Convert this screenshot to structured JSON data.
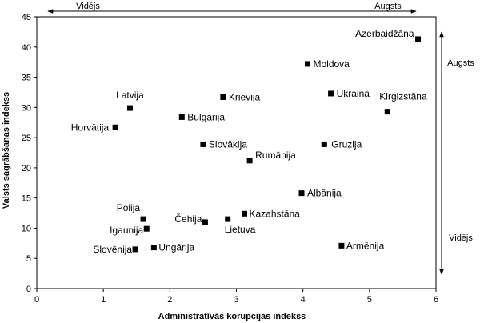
{
  "chart_data": {
    "type": "scatter",
    "title": "",
    "xlabel": "Administratīvās korupcijas indekss",
    "ylabel": "Valsts sagrābšanas indekss",
    "xlim": [
      0,
      6
    ],
    "ylim": [
      0,
      45
    ],
    "xticks": [
      0,
      1,
      2,
      3,
      4,
      5,
      6
    ],
    "yticks": [
      0,
      5,
      10,
      15,
      20,
      25,
      30,
      35,
      40,
      45
    ],
    "grid": false,
    "regions": {
      "top_left": "Vidējs",
      "top_right": "Augsts",
      "right_top": "Augsts",
      "right_bottom": "Vidējs"
    },
    "points": [
      {
        "label": "Azerbaidžāna",
        "x": 5.73,
        "y": 41.3
      },
      {
        "label": "Moldova",
        "x": 4.07,
        "y": 37.2
      },
      {
        "label": "Ukraina",
        "x": 4.42,
        "y": 32.3
      },
      {
        "label": "Kirgizstāna",
        "x": 5.27,
        "y": 29.3
      },
      {
        "label": "Latvija",
        "x": 1.4,
        "y": 29.9
      },
      {
        "label": "Krievija",
        "x": 2.8,
        "y": 31.7
      },
      {
        "label": "Bulgārija",
        "x": 2.18,
        "y": 28.4
      },
      {
        "label": "Horvātija",
        "x": 1.18,
        "y": 26.7
      },
      {
        "label": "Slovākija",
        "x": 2.5,
        "y": 23.9
      },
      {
        "label": "Gruzija",
        "x": 4.32,
        "y": 23.9
      },
      {
        "label": "Rumānija",
        "x": 3.2,
        "y": 21.2
      },
      {
        "label": "Albānija",
        "x": 3.98,
        "y": 15.8
      },
      {
        "label": "Kazahstāna",
        "x": 3.12,
        "y": 12.4
      },
      {
        "label": "Polija",
        "x": 1.6,
        "y": 11.5
      },
      {
        "label": "Čehija",
        "x": 2.53,
        "y": 11.0
      },
      {
        "label": "Lietuva",
        "x": 2.87,
        "y": 11.5
      },
      {
        "label": "Igaunija",
        "x": 1.65,
        "y": 9.9
      },
      {
        "label": "Slovēnija",
        "x": 1.48,
        "y": 6.5
      },
      {
        "label": "Ungārija",
        "x": 1.76,
        "y": 6.8
      },
      {
        "label": "Armēnija",
        "x": 4.58,
        "y": 7.1
      }
    ]
  }
}
